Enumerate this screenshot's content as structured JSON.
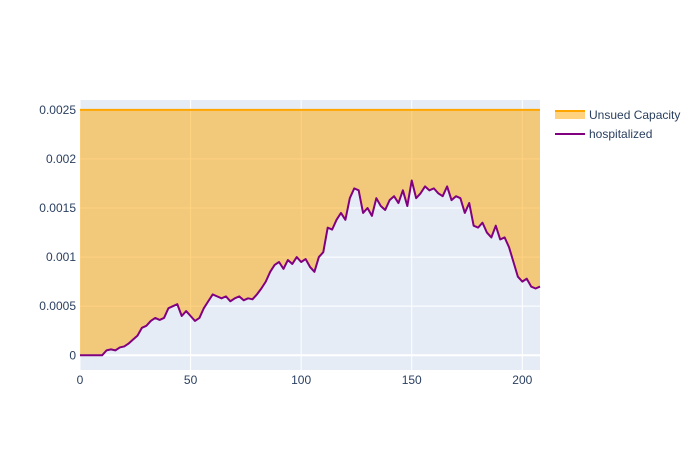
{
  "chart_data": {
    "type": "area",
    "title": "",
    "xlabel": "",
    "ylabel": "",
    "xlim": [
      0,
      208
    ],
    "ylim": [
      -0.00015,
      0.0026
    ],
    "x_ticks": [
      0,
      50,
      100,
      150,
      200
    ],
    "y_ticks": [
      0,
      0.0005,
      0.001,
      0.0015,
      0.002,
      0.0025
    ],
    "x_tick_labels": [
      "0",
      "50",
      "100",
      "150",
      "200"
    ],
    "y_tick_labels": [
      "0",
      "0.0005",
      "0.001",
      "0.0015",
      "0.002",
      "0.0025"
    ],
    "grid": true,
    "legend_position": "top-right",
    "series": [
      {
        "name": "Unsued Capacity",
        "kind": "filled-area-to-line",
        "constant_value": 0.0025,
        "color": "#ffa500",
        "fill_color": "rgba(255,165,0,0.5)"
      },
      {
        "name": "hospitalized",
        "kind": "line",
        "color": "#800080",
        "points": [
          [
            0,
            0
          ],
          [
            10,
            0
          ],
          [
            12,
            5e-05
          ],
          [
            14,
            6e-05
          ],
          [
            16,
            5e-05
          ],
          [
            18,
            8e-05
          ],
          [
            20,
            9e-05
          ],
          [
            22,
            0.00012
          ],
          [
            24,
            0.00016
          ],
          [
            26,
            0.0002
          ],
          [
            28,
            0.00028
          ],
          [
            30,
            0.0003
          ],
          [
            32,
            0.00035
          ],
          [
            34,
            0.00038
          ],
          [
            36,
            0.00036
          ],
          [
            38,
            0.00038
          ],
          [
            40,
            0.00048
          ],
          [
            42,
            0.0005
          ],
          [
            44,
            0.00052
          ],
          [
            46,
            0.0004
          ],
          [
            48,
            0.00045
          ],
          [
            50,
            0.0004
          ],
          [
            52,
            0.00035
          ],
          [
            54,
            0.00038
          ],
          [
            56,
            0.00048
          ],
          [
            58,
            0.00055
          ],
          [
            60,
            0.00062
          ],
          [
            62,
            0.0006
          ],
          [
            64,
            0.00058
          ],
          [
            66,
            0.0006
          ],
          [
            68,
            0.00055
          ],
          [
            70,
            0.00058
          ],
          [
            72,
            0.0006
          ],
          [
            74,
            0.00056
          ],
          [
            76,
            0.00058
          ],
          [
            78,
            0.00057
          ],
          [
            80,
            0.00062
          ],
          [
            82,
            0.00068
          ],
          [
            84,
            0.00075
          ],
          [
            86,
            0.00085
          ],
          [
            88,
            0.00092
          ],
          [
            90,
            0.00095
          ],
          [
            92,
            0.00088
          ],
          [
            94,
            0.00097
          ],
          [
            96,
            0.00093
          ],
          [
            98,
            0.001
          ],
          [
            100,
            0.00095
          ],
          [
            102,
            0.00098
          ],
          [
            104,
            0.0009
          ],
          [
            106,
            0.00085
          ],
          [
            108,
            0.001
          ],
          [
            110,
            0.00105
          ],
          [
            112,
            0.0013
          ],
          [
            114,
            0.00128
          ],
          [
            116,
            0.00138
          ],
          [
            118,
            0.00145
          ],
          [
            120,
            0.00138
          ],
          [
            122,
            0.0016
          ],
          [
            124,
            0.0017
          ],
          [
            126,
            0.00168
          ],
          [
            128,
            0.00145
          ],
          [
            130,
            0.0015
          ],
          [
            132,
            0.00142
          ],
          [
            134,
            0.0016
          ],
          [
            136,
            0.00152
          ],
          [
            138,
            0.00148
          ],
          [
            140,
            0.00158
          ],
          [
            142,
            0.00162
          ],
          [
            144,
            0.00155
          ],
          [
            146,
            0.00168
          ],
          [
            148,
            0.00152
          ],
          [
            150,
            0.00178
          ],
          [
            152,
            0.0016
          ],
          [
            154,
            0.00165
          ],
          [
            156,
            0.00172
          ],
          [
            158,
            0.00168
          ],
          [
            160,
            0.0017
          ],
          [
            162,
            0.00165
          ],
          [
            164,
            0.00162
          ],
          [
            166,
            0.00172
          ],
          [
            168,
            0.00158
          ],
          [
            170,
            0.00162
          ],
          [
            172,
            0.0016
          ],
          [
            174,
            0.00145
          ],
          [
            176,
            0.00155
          ],
          [
            178,
            0.00132
          ],
          [
            180,
            0.0013
          ],
          [
            182,
            0.00135
          ],
          [
            184,
            0.00125
          ],
          [
            186,
            0.0012
          ],
          [
            188,
            0.00132
          ],
          [
            190,
            0.00118
          ],
          [
            192,
            0.0012
          ],
          [
            194,
            0.0011
          ],
          [
            196,
            0.00095
          ],
          [
            198,
            0.0008
          ],
          [
            200,
            0.00075
          ],
          [
            202,
            0.00078
          ],
          [
            204,
            0.0007
          ],
          [
            206,
            0.00068
          ],
          [
            208,
            0.0007
          ]
        ]
      }
    ]
  },
  "colors": {
    "plot_bg": "#e5ecf6",
    "grid": "#ffffff",
    "text": "#2a3f5f"
  }
}
